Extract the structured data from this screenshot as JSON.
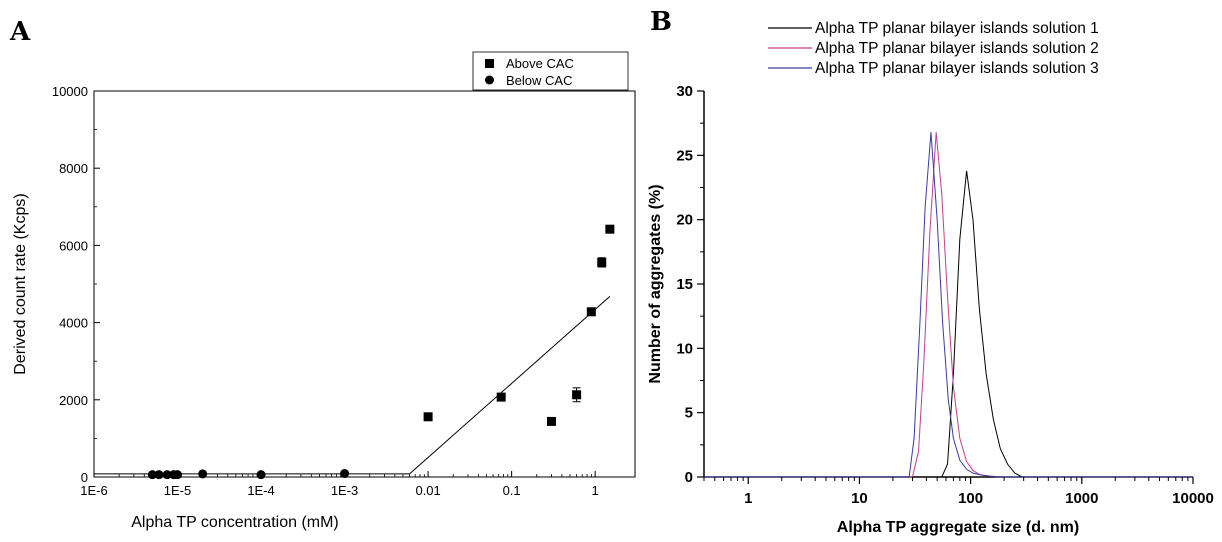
{
  "chart_data": [
    {
      "panel": "A",
      "type": "scatter",
      "xlabel": "Alpha TP concentration (mM)",
      "ylabel": "Derived count rate (Kcps)",
      "xscale": "log",
      "xlim": [
        1e-06,
        3
      ],
      "ylim": [
        0,
        10000
      ],
      "xticks": [
        1e-06,
        1e-05,
        0.0001,
        0.001,
        0.01,
        0.1,
        1
      ],
      "xtick_labels": [
        "1E-6",
        "1E-5",
        "1E-4",
        "1E-3",
        "0.01",
        "0.1",
        "1"
      ],
      "yticks": [
        0,
        2000,
        4000,
        6000,
        8000,
        10000
      ],
      "ytick_labels": [
        "0",
        "2000",
        "4000",
        "6000",
        "8000",
        "10000"
      ],
      "legend_position": "top-right",
      "series": [
        {
          "name": "Above CAC",
          "marker": "square",
          "x": [
            0.01,
            0.075,
            0.3,
            0.6,
            0.9,
            1.2,
            1.5
          ],
          "y": [
            1560,
            2070,
            1440,
            2130,
            4280,
            5560,
            6420
          ],
          "yerr": [
            0,
            0,
            0,
            180,
            0,
            120,
            0
          ]
        },
        {
          "name": "Below CAC",
          "marker": "circle",
          "x": [
            5e-06,
            6e-06,
            7.5e-06,
            9e-06,
            1e-05,
            2e-05,
            0.0001,
            0.001
          ],
          "y": [
            60,
            60,
            60,
            60,
            60,
            80,
            60,
            90
          ]
        }
      ],
      "fit_lines": [
        {
          "x": [
            1e-06,
            0.006
          ],
          "y": [
            80,
            80
          ]
        },
        {
          "x": [
            0.006,
            1.5
          ],
          "y": [
            80,
            4680
          ]
        }
      ]
    },
    {
      "panel": "B",
      "type": "line",
      "xlabel": "Alpha TP aggregate size (d. nm)",
      "ylabel": "Number of aggregates (%)",
      "xscale": "log",
      "xlim": [
        0.4,
        10000
      ],
      "ylim": [
        0,
        30
      ],
      "xticks": [
        1,
        10,
        100,
        1000,
        10000
      ],
      "xtick_labels": [
        "1",
        "10",
        "100",
        "1000",
        "10000"
      ],
      "yticks": [
        0,
        5,
        10,
        15,
        20,
        25,
        30
      ],
      "ytick_labels": [
        "0",
        "5",
        "10",
        "15",
        "20",
        "25",
        "30"
      ],
      "legend_position": "top-right",
      "series": [
        {
          "name": "Alpha TP planar bilayer islands solution 1",
          "color": "#000000",
          "x": [
            0.4,
            55,
            62,
            70,
            80,
            92,
            105,
            120,
            138,
            160,
            185,
            215,
            250,
            290,
            10000
          ],
          "y": [
            0,
            0,
            1,
            8,
            18.5,
            23.8,
            20,
            13,
            8,
            4.5,
            2.2,
            1,
            0.3,
            0,
            0
          ]
        },
        {
          "name": "Alpha TP planar bilayer islands solution 2",
          "color": "#c0408a",
          "x": [
            0.4,
            30,
            34,
            38,
            43,
            49,
            55,
            62,
            70,
            80,
            92,
            105,
            120,
            140,
            165,
            200,
            10000
          ],
          "y": [
            0,
            0,
            2,
            9,
            19,
            26.8,
            22,
            14,
            7,
            3,
            1.2,
            0.5,
            0.2,
            0.1,
            0.05,
            0,
            0
          ]
        },
        {
          "name": "Alpha TP planar bilayer islands solution 3",
          "color": "#3a3aa0",
          "x": [
            0.4,
            28,
            31,
            35,
            39,
            44,
            50,
            56,
            63,
            70,
            80,
            92,
            105,
            125,
            150,
            180,
            10000
          ],
          "y": [
            0,
            0,
            3,
            12,
            21,
            26.8,
            20,
            12,
            6,
            3,
            1.3,
            0.6,
            0.3,
            0.15,
            0.05,
            0,
            0
          ]
        }
      ]
    }
  ],
  "panel_labels": {
    "a": "A",
    "b": "B"
  }
}
